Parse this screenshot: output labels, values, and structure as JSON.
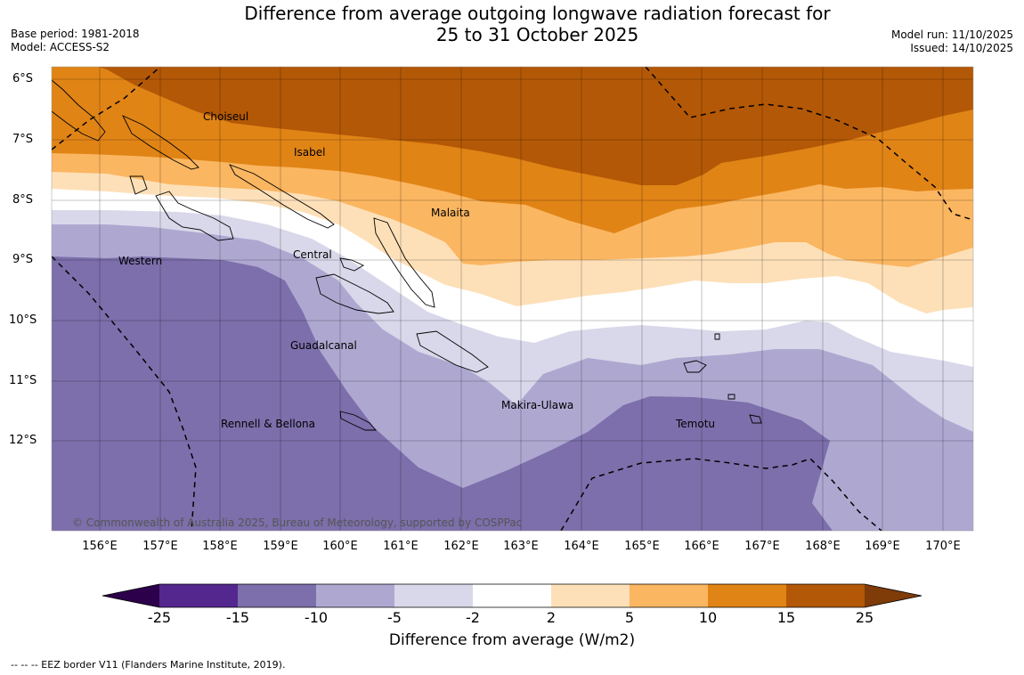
{
  "title_line1": "Difference from average outgoing longwave radiation forecast for",
  "title_line2": "25 to 31 October 2025",
  "base_period": "Base period: 1981-2018",
  "model": "Model: ACCESS-S2",
  "model_run": "Model run: 11/10/2025",
  "issued": "Issued: 14/10/2025",
  "lat_labels": [
    "6°S",
    "7°S",
    "8°S",
    "9°S",
    "10°S",
    "11°S",
    "12°S"
  ],
  "lon_labels": [
    "156°E",
    "157°E",
    "158°E",
    "159°E",
    "160°E",
    "161°E",
    "162°E",
    "163°E",
    "164°E",
    "165°E",
    "166°E",
    "167°E",
    "168°E",
    "169°E",
    "170°E"
  ],
  "regions": [
    "Choiseul",
    "Isabel",
    "Malaita",
    "Western",
    "Central",
    "Guadalcanal",
    "Makira-Ulawa",
    "Rennell & Bellona",
    "Temotu"
  ],
  "copyright": "© Commonwealth of Australia 2025, Bureau of Meteorology, supported by COSPPac",
  "colorbar": {
    "ticks": [
      "-25",
      "-15",
      "-10",
      "-5",
      "-2",
      "2",
      "5",
      "10",
      "15",
      "25"
    ],
    "colors": [
      "#54278f",
      "#7c6fab",
      "#aea8d1",
      "#d9d8ea",
      "#ffffff",
      "#fde0b8",
      "#fbb661",
      "#e08416",
      "#b35806"
    ],
    "extend_low_color": "#2d004b",
    "extend_high_color": "#7f3b08",
    "title": "Difference from average (W/m2)"
  },
  "footnote": "--  --  -- EEZ border V11 (Flanders Marine Institute, 2019)."
}
